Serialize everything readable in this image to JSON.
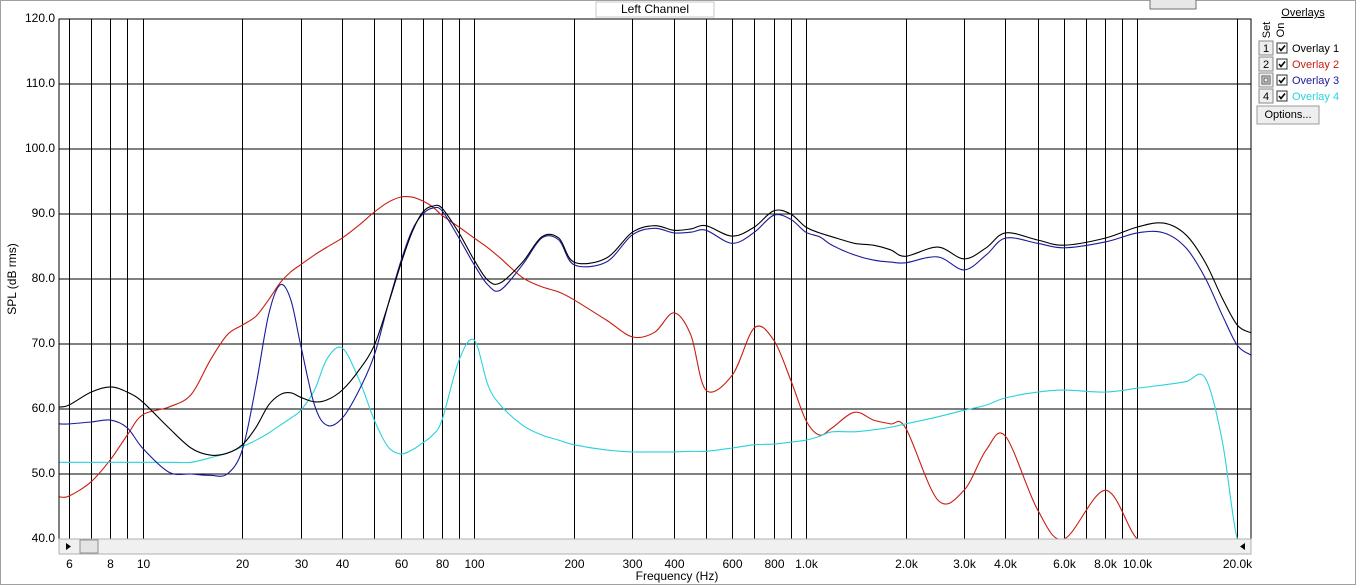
{
  "chart_data": {
    "type": "line",
    "title": "Left Channel",
    "xlabel": "Frequency (Hz)",
    "ylabel": "SPL (dB rms)",
    "log_x": true,
    "grid": true,
    "xlim": [
      5.6,
      22000
    ],
    "ylim": [
      40,
      120
    ],
    "xticks": [
      6,
      8,
      10,
      20,
      30,
      40,
      60,
      80,
      100,
      200,
      300,
      400,
      600,
      800,
      {
        "value": 1000,
        "label": "1.0k"
      },
      {
        "value": 2000,
        "label": "2.0k"
      },
      {
        "value": 3000,
        "label": "3.0k"
      },
      {
        "value": 4000,
        "label": "4.0k"
      },
      {
        "value": 6000,
        "label": "6.0k"
      },
      {
        "value": 8000,
        "label": "8.0k"
      },
      {
        "value": 10000,
        "label": "10.0k"
      },
      {
        "value": 20000,
        "label": "20.0k"
      }
    ],
    "xminor": [
      7,
      9,
      50,
      70,
      90,
      500,
      700,
      900,
      5000,
      7000,
      9000
    ],
    "yticks": [
      {
        "value": 40,
        "label": "40.0"
      },
      {
        "value": 50,
        "label": "50.0"
      },
      {
        "value": 60,
        "label": "60.0"
      },
      {
        "value": 70,
        "label": "70.0"
      },
      {
        "value": 80,
        "label": "80.0"
      },
      {
        "value": 90,
        "label": "90.0"
      },
      {
        "value": 100,
        "label": "100.0"
      },
      {
        "value": 110,
        "label": "110.0"
      },
      {
        "value": 120,
        "label": "120.0"
      }
    ],
    "x": [
      5.6,
      6,
      7,
      8,
      9,
      10,
      12,
      14,
      16,
      18,
      20,
      22,
      24,
      26,
      28,
      30,
      33,
      36,
      40,
      45,
      50,
      55,
      60,
      65,
      70,
      75,
      80,
      90,
      100,
      110,
      120,
      140,
      160,
      180,
      200,
      250,
      300,
      350,
      400,
      450,
      500,
      600,
      700,
      800,
      900,
      1000,
      1100,
      1200,
      1400,
      1600,
      1800,
      2000,
      2500,
      3000,
      3500,
      4000,
      5000,
      6000,
      8000,
      10000,
      12000,
      14000,
      16000,
      18000,
      20000,
      22000
    ],
    "series": [
      {
        "name": "Overlay 1",
        "color": "#000000",
        "values": [
          60.3,
          60.6,
          62.6,
          63.4,
          62.6,
          61.1,
          57.1,
          54.0,
          52.9,
          53.2,
          54.5,
          57.2,
          60.6,
          62.2,
          62.5,
          61.8,
          61.1,
          61.4,
          62.9,
          66,
          69.8,
          76,
          82.2,
          87.2,
          90.3,
          91.2,
          90.9,
          87.1,
          82.9,
          79.8,
          79.4,
          82.6,
          86.5,
          86.3,
          82.6,
          83.2,
          87.2,
          88.2,
          87.5,
          87.7,
          88.2,
          86.6,
          88,
          90.5,
          90,
          88,
          87.1,
          86.5,
          85.5,
          85.2,
          84.5,
          83.5,
          84.9,
          83.1,
          84.8,
          87.1,
          86,
          85.2,
          86.3,
          88,
          88.6,
          86.8,
          82.6,
          77.1,
          72.9,
          71.7
        ]
      },
      {
        "name": "Overlay 2",
        "color": "#c81e0f",
        "values": [
          46.5,
          46.6,
          48.8,
          52.2,
          56,
          59.1,
          60.3,
          62.2,
          67.5,
          71.4,
          72.9,
          74.3,
          76.8,
          79.4,
          81.1,
          82.2,
          83.7,
          84.9,
          86.3,
          88.3,
          90.3,
          91.8,
          92.6,
          92.6,
          92,
          91.1,
          89.8,
          88,
          86.3,
          84.8,
          83.2,
          80.2,
          78.8,
          78,
          76.8,
          73.7,
          71.1,
          71.8,
          74.8,
          71.4,
          62.9,
          65.2,
          72.5,
          70.6,
          64.5,
          58.3,
          56,
          57.1,
          59.5,
          58.3,
          57.7,
          57.1,
          46,
          47.5,
          53.7,
          55.8,
          44.5,
          40,
          47.5,
          40,
          40,
          40,
          40,
          40,
          40,
          40
        ]
      },
      {
        "name": "Overlay 3",
        "color": "#1a1a9a",
        "values": [
          57.7,
          57.7,
          58,
          58.3,
          57.1,
          54,
          50.3,
          50,
          49.8,
          50,
          53.7,
          63.7,
          74.5,
          79.1,
          76.8,
          69.8,
          60.6,
          57.5,
          58.6,
          62.9,
          68.3,
          76,
          82.6,
          87.5,
          90,
          90.9,
          90.5,
          86.3,
          82.2,
          79.1,
          78.3,
          82.2,
          86.3,
          86,
          82.2,
          82.6,
          86.8,
          87.8,
          87.1,
          87.2,
          87.5,
          85.5,
          87.2,
          89.8,
          89.2,
          87.2,
          86.5,
          85.2,
          83.7,
          82.9,
          82.6,
          82.5,
          83.4,
          81.4,
          83.7,
          86.3,
          85.5,
          84.8,
          85.7,
          87.1,
          87.1,
          84.8,
          80.2,
          74.5,
          69.8,
          68.3
        ]
      },
      {
        "name": "Overlay 4",
        "color": "#2ad2dc",
        "values": [
          51.8,
          51.8,
          51.8,
          51.8,
          51.8,
          51.8,
          51.8,
          51.8,
          52.5,
          53.2,
          54.2,
          55.2,
          56.3,
          57.5,
          58.6,
          59.8,
          62.9,
          67.7,
          69.4,
          64.5,
          58.3,
          54.2,
          53.1,
          53.7,
          54.8,
          56,
          58.3,
          67.5,
          70.6,
          63.7,
          60.6,
          57.5,
          56,
          55.2,
          54.5,
          53.7,
          53.4,
          53.4,
          53.4,
          53.5,
          53.5,
          54,
          54.5,
          54.6,
          54.9,
          55.2,
          55.8,
          56.5,
          56.5,
          56.8,
          57.2,
          57.7,
          58.8,
          59.8,
          60.6,
          61.7,
          62.6,
          62.9,
          62.6,
          63.2,
          63.7,
          64.2,
          64.8,
          55.2,
          40,
          40
        ]
      }
    ]
  },
  "panel": {
    "title": "Overlays",
    "set": "Set",
    "on": "On",
    "buttons": [
      "1",
      "2",
      null,
      "4"
    ],
    "options": "Options..."
  }
}
